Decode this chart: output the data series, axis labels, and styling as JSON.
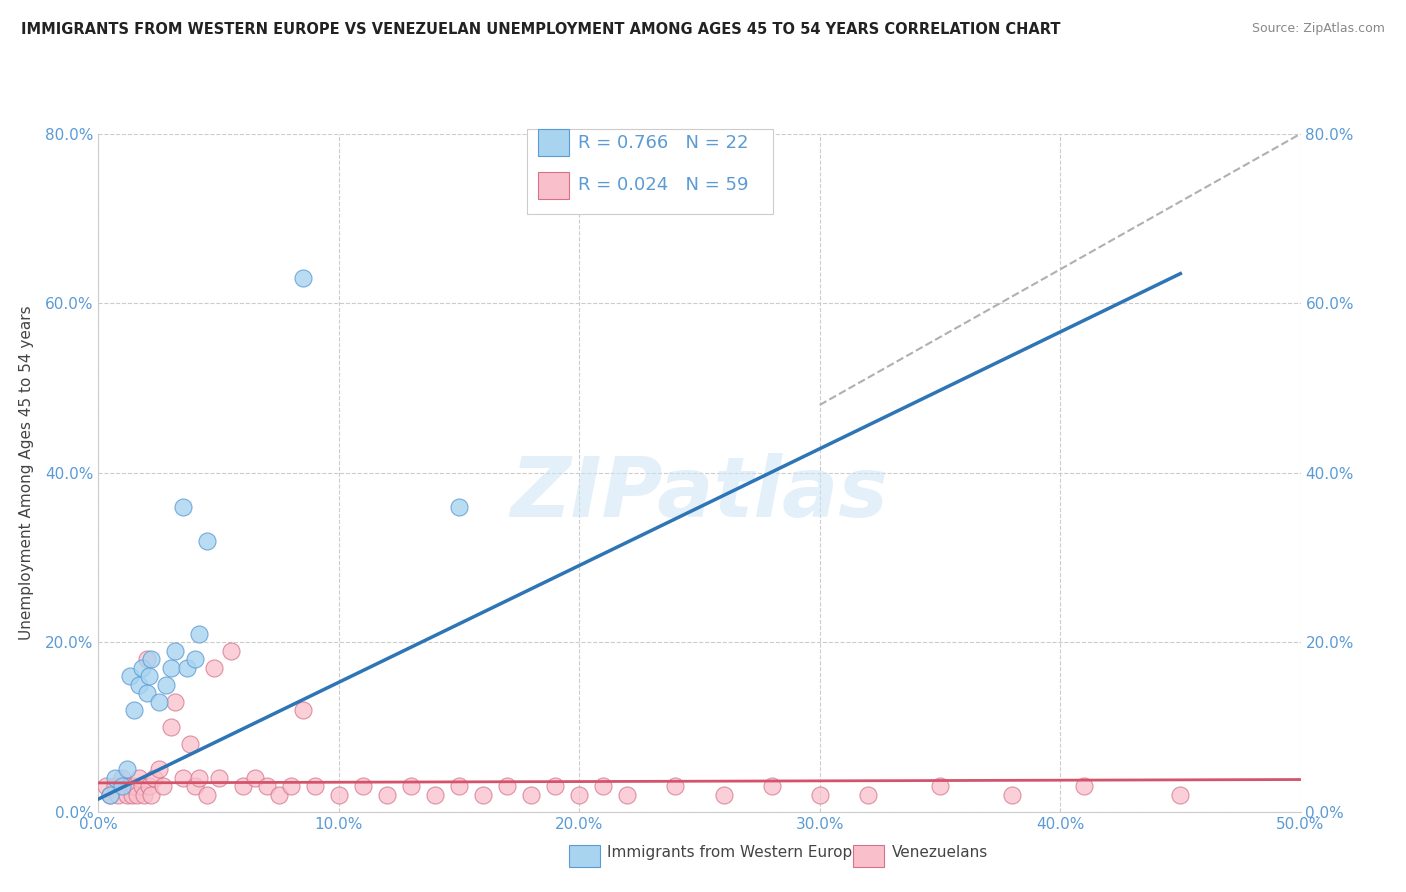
{
  "title": "IMMIGRANTS FROM WESTERN EUROPE VS VENEZUELAN UNEMPLOYMENT AMONG AGES 45 TO 54 YEARS CORRELATION CHART",
  "source": "Source: ZipAtlas.com",
  "ylabel_label": "Unemployment Among Ages 45 to 54 years",
  "xlim": [
    0.0,
    0.5
  ],
  "ylim": [
    0.0,
    0.8
  ],
  "xtick_labels": [
    "0.0%",
    "10.0%",
    "20.0%",
    "30.0%",
    "40.0%",
    "50.0%"
  ],
  "xtick_vals": [
    0.0,
    0.1,
    0.2,
    0.3,
    0.4,
    0.5
  ],
  "ytick_labels_left": [
    "0.0%",
    "20.0%",
    "40.0%",
    "60.0%",
    "80.0%"
  ],
  "ytick_labels_right": [
    "0.0%",
    "20.0%",
    "40.0%",
    "60.0%",
    "80.0%"
  ],
  "ytick_vals": [
    0.0,
    0.2,
    0.4,
    0.6,
    0.8
  ],
  "blue_color": "#a8d4f0",
  "blue_edge": "#5b9bd5",
  "pink_color": "#f9c0cb",
  "pink_edge": "#d4728a",
  "blue_line_color": "#2e75b6",
  "pink_line_color": "#d4536a",
  "dashed_line_color": "#b0b0b0",
  "tick_color": "#5b9bd5",
  "watermark": "ZIPatlas",
  "legend_R_blue": "R = 0.766",
  "legend_N_blue": "N = 22",
  "legend_R_pink": "R = 0.024",
  "legend_N_pink": "N = 59",
  "blue_series_label": "Immigrants from Western Europe",
  "pink_series_label": "Venezuelans",
  "blue_scatter_x": [
    0.005,
    0.007,
    0.01,
    0.012,
    0.013,
    0.015,
    0.017,
    0.018,
    0.02,
    0.021,
    0.022,
    0.025,
    0.028,
    0.03,
    0.032,
    0.035,
    0.037,
    0.04,
    0.042,
    0.045,
    0.085,
    0.15
  ],
  "blue_scatter_y": [
    0.02,
    0.04,
    0.03,
    0.05,
    0.16,
    0.12,
    0.15,
    0.17,
    0.14,
    0.16,
    0.18,
    0.13,
    0.15,
    0.17,
    0.19,
    0.36,
    0.17,
    0.18,
    0.21,
    0.32,
    0.63,
    0.36
  ],
  "pink_scatter_x": [
    0.003,
    0.005,
    0.007,
    0.008,
    0.01,
    0.011,
    0.012,
    0.013,
    0.014,
    0.015,
    0.016,
    0.017,
    0.018,
    0.019,
    0.02,
    0.021,
    0.022,
    0.023,
    0.025,
    0.027,
    0.03,
    0.032,
    0.035,
    0.038,
    0.04,
    0.042,
    0.045,
    0.048,
    0.05,
    0.055,
    0.06,
    0.065,
    0.07,
    0.075,
    0.08,
    0.085,
    0.09,
    0.1,
    0.11,
    0.12,
    0.13,
    0.14,
    0.15,
    0.16,
    0.17,
    0.18,
    0.19,
    0.2,
    0.21,
    0.22,
    0.24,
    0.26,
    0.28,
    0.3,
    0.32,
    0.35,
    0.38,
    0.41,
    0.45
  ],
  "pink_scatter_y": [
    0.03,
    0.02,
    0.03,
    0.02,
    0.04,
    0.03,
    0.02,
    0.03,
    0.02,
    0.03,
    0.02,
    0.04,
    0.03,
    0.02,
    0.18,
    0.03,
    0.02,
    0.04,
    0.05,
    0.03,
    0.1,
    0.13,
    0.04,
    0.08,
    0.03,
    0.04,
    0.02,
    0.17,
    0.04,
    0.19,
    0.03,
    0.04,
    0.03,
    0.02,
    0.03,
    0.12,
    0.03,
    0.02,
    0.03,
    0.02,
    0.03,
    0.02,
    0.03,
    0.02,
    0.03,
    0.02,
    0.03,
    0.02,
    0.03,
    0.02,
    0.03,
    0.02,
    0.03,
    0.02,
    0.02,
    0.03,
    0.02,
    0.03,
    0.02
  ],
  "blue_line_x": [
    0.0,
    0.45
  ],
  "blue_line_y": [
    0.015,
    0.635
  ],
  "pink_line_x": [
    0.0,
    0.5
  ],
  "pink_line_y": [
    0.034,
    0.038
  ],
  "dashed_line_x": [
    0.3,
    0.5
  ],
  "dashed_line_y": [
    0.48,
    0.8
  ],
  "background_color": "#ffffff",
  "grid_color": "#cccccc"
}
